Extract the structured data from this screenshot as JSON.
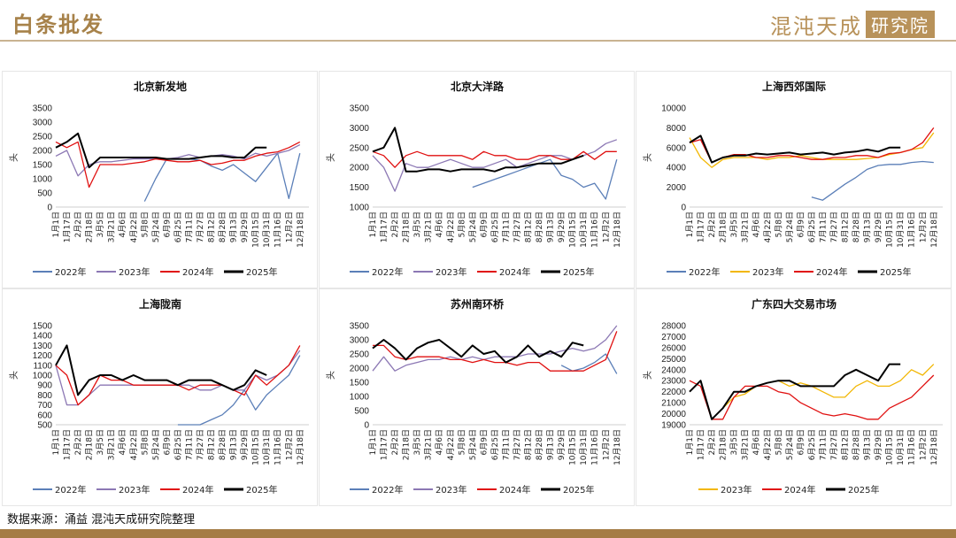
{
  "header": {
    "title": "白条批发",
    "logo_text": "混沌天成",
    "logo_badge": "研究院"
  },
  "footer": {
    "source": "数据来源：涌益 混沌天成研究院整理"
  },
  "colors": {
    "2022": "#5b7fb8",
    "2023_purple": "#8c78b4",
    "2023_yellow": "#f2b705",
    "2024": "#e01010",
    "2025": "#000000",
    "accent": "#a57c45"
  },
  "chart_data": [
    {
      "type": "line",
      "title": "北京新发地",
      "ylabel": "头",
      "ylim": [
        0,
        3500
      ],
      "yticks": [
        0,
        500,
        1000,
        1500,
        2000,
        2500,
        3000,
        3500
      ],
      "x": [
        "1月1日",
        "1月17日",
        "2月2日",
        "2月18日",
        "3月5日",
        "3月21日",
        "4月6日",
        "4月22日",
        "5月8日",
        "5月24日",
        "6月9日",
        "6月25日",
        "7月11日",
        "7月27日",
        "8月12日",
        "8月28日",
        "9月13日",
        "9月29日",
        "10月15日",
        "10月31日",
        "11月16日",
        "12月2日",
        "12月18日"
      ],
      "series": [
        {
          "name": "2022年",
          "color": "#5b7fb8",
          "values": [
            null,
            null,
            null,
            null,
            null,
            null,
            null,
            null,
            200,
            1000,
            1700,
            1700,
            1700,
            1650,
            1450,
            1300,
            1500,
            1200,
            900,
            1400,
            1900,
            300,
            1900
          ]
        },
        {
          "name": "2023年",
          "color": "#8c78b4",
          "values": [
            1800,
            2000,
            1100,
            1500,
            1600,
            1600,
            1650,
            1700,
            1700,
            1700,
            1700,
            1750,
            1850,
            1750,
            1800,
            1850,
            1800,
            1700,
            1900,
            1800,
            1900,
            2000,
            2200
          ]
        },
        {
          "name": "2024年",
          "color": "#e01010",
          "values": [
            2300,
            2100,
            2300,
            700,
            1500,
            1500,
            1500,
            1550,
            1600,
            1700,
            1650,
            1600,
            1600,
            1650,
            1500,
            1550,
            1650,
            1650,
            1800,
            1900,
            1950,
            2100,
            2300
          ]
        },
        {
          "name": "2025年",
          "color": "#000000",
          "values": [
            2100,
            2300,
            2600,
            1400,
            1750,
            1750,
            1750,
            1750,
            1750,
            1750,
            1700,
            1700,
            1700,
            1750,
            1800,
            1800,
            1750,
            1750,
            2100,
            2100,
            null,
            null,
            null
          ]
        }
      ]
    },
    {
      "type": "line",
      "title": "北京大洋路",
      "ylabel": "头",
      "ylim": [
        1000,
        3500
      ],
      "yticks": [
        1000,
        1500,
        2000,
        2500,
        3000,
        3500
      ],
      "x": [
        "1月1日",
        "1月17日",
        "2月2日",
        "2月18日",
        "3月5日",
        "3月21日",
        "4月6日",
        "4月22日",
        "5月8日",
        "5月24日",
        "6月9日",
        "6月25日",
        "7月11日",
        "7月27日",
        "8月12日",
        "8月28日",
        "9月13日",
        "9月29日",
        "10月15日",
        "10月31日",
        "11月16日",
        "12月2日",
        "12月18日"
      ],
      "series": [
        {
          "name": "2022年",
          "color": "#5b7fb8",
          "values": [
            null,
            null,
            null,
            null,
            null,
            null,
            null,
            null,
            null,
            1500,
            1600,
            1700,
            1800,
            1900,
            2000,
            2100,
            2200,
            1800,
            1700,
            1500,
            1600,
            1200,
            2200
          ]
        },
        {
          "name": "2023年",
          "color": "#8c78b4",
          "values": [
            2300,
            2000,
            1400,
            2100,
            2000,
            2000,
            2100,
            2200,
            2100,
            2000,
            2000,
            2100,
            2200,
            2000,
            2100,
            2200,
            2300,
            2300,
            2200,
            2300,
            2400,
            2600,
            2700
          ]
        },
        {
          "name": "2024年",
          "color": "#e01010",
          "values": [
            2400,
            2300,
            2000,
            2300,
            2400,
            2300,
            2300,
            2300,
            2300,
            2200,
            2400,
            2300,
            2300,
            2200,
            2200,
            2300,
            2300,
            2200,
            2200,
            2400,
            2200,
            2400,
            2400
          ]
        },
        {
          "name": "2025年",
          "color": "#000000",
          "values": [
            2400,
            2500,
            3000,
            1900,
            1900,
            1950,
            1950,
            1900,
            1950,
            1950,
            1950,
            1900,
            2000,
            2000,
            2050,
            2100,
            2100,
            2100,
            2200,
            2300,
            null,
            null,
            null
          ]
        }
      ]
    },
    {
      "type": "line",
      "title": "上海西郊国际",
      "ylabel": "头",
      "ylim": [
        0,
        10000
      ],
      "yticks": [
        0,
        2000,
        4000,
        6000,
        8000,
        10000
      ],
      "x": [
        "1月1日",
        "1月17日",
        "2月2日",
        "2月18日",
        "3月5日",
        "3月21日",
        "4月6日",
        "4月22日",
        "5月8日",
        "5月24日",
        "6月9日",
        "6月25日",
        "7月11日",
        "7月27日",
        "8月12日",
        "8月28日",
        "9月13日",
        "9月29日",
        "10月15日",
        "10月31日",
        "11月16日",
        "12月2日",
        "12月18日"
      ],
      "series": [
        {
          "name": "2022年",
          "color": "#5b7fb8",
          "values": [
            null,
            null,
            null,
            null,
            null,
            null,
            null,
            null,
            null,
            null,
            null,
            1000,
            700,
            1500,
            2300,
            3000,
            3800,
            4200,
            4300,
            4300,
            4500,
            4600,
            4500
          ]
        },
        {
          "name": "2023年",
          "color": "#f2b705",
          "values": [
            7000,
            5000,
            4000,
            4800,
            5000,
            5000,
            5000,
            4800,
            5000,
            5000,
            5200,
            5000,
            4800,
            4800,
            4800,
            4800,
            4900,
            5000,
            5300,
            5500,
            5800,
            6000,
            7500
          ]
        },
        {
          "name": "2024年",
          "color": "#e01010",
          "values": [
            6500,
            6800,
            4500,
            5000,
            5300,
            5300,
            5000,
            5000,
            5200,
            5200,
            5000,
            4800,
            4800,
            5000,
            5000,
            5200,
            5200,
            5000,
            5400,
            5500,
            5800,
            6500,
            8000
          ]
        },
        {
          "name": "2025年",
          "color": "#000000",
          "values": [
            6500,
            7200,
            4500,
            5000,
            5200,
            5200,
            5400,
            5300,
            5400,
            5500,
            5300,
            5400,
            5500,
            5300,
            5500,
            5600,
            5800,
            5600,
            6000,
            6000,
            null,
            null,
            null
          ]
        }
      ]
    },
    {
      "type": "line",
      "title": "上海陇南",
      "ylabel": "头",
      "ylim": [
        500,
        1500
      ],
      "yticks": [
        500,
        600,
        700,
        800,
        900,
        1000,
        1100,
        1200,
        1300,
        1400,
        1500
      ],
      "x": [
        "1月1日",
        "1月17日",
        "2月2日",
        "2月18日",
        "3月5日",
        "3月21日",
        "4月6日",
        "4月22日",
        "5月8日",
        "5月24日",
        "6月9日",
        "6月25日",
        "7月11日",
        "7月27日",
        "8月12日",
        "8月28日",
        "9月13日",
        "9月29日",
        "10月15日",
        "10月31日",
        "11月16日",
        "12月2日",
        "12月18日"
      ],
      "series": [
        {
          "name": "2022年",
          "color": "#5b7fb8",
          "values": [
            null,
            null,
            null,
            null,
            null,
            null,
            null,
            null,
            null,
            null,
            null,
            500,
            500,
            500,
            550,
            600,
            700,
            850,
            650,
            800,
            900,
            1000,
            1200
          ]
        },
        {
          "name": "2023年",
          "color": "#8c78b4",
          "values": [
            1100,
            700,
            700,
            800,
            900,
            900,
            900,
            900,
            900,
            900,
            900,
            900,
            900,
            850,
            850,
            900,
            850,
            850,
            1000,
            950,
            1000,
            1100,
            1250
          ]
        },
        {
          "name": "2024年",
          "color": "#e01010",
          "values": [
            1100,
            1000,
            700,
            800,
            1000,
            950,
            950,
            900,
            900,
            900,
            900,
            900,
            850,
            900,
            900,
            900,
            850,
            800,
            1000,
            900,
            1000,
            1100,
            1300
          ]
        },
        {
          "name": "2025年",
          "color": "#000000",
          "values": [
            1100,
            1300,
            800,
            950,
            1000,
            1000,
            950,
            1000,
            950,
            950,
            950,
            900,
            950,
            950,
            950,
            900,
            850,
            900,
            1050,
            1000,
            null,
            null,
            null
          ]
        }
      ]
    },
    {
      "type": "line",
      "title": "苏州南环桥",
      "ylabel": "头",
      "ylim": [
        0,
        3500
      ],
      "yticks": [
        0,
        500,
        1000,
        1500,
        2000,
        2500,
        3000,
        3500
      ],
      "x": [
        "1月1日",
        "1月17日",
        "2月2日",
        "2月18日",
        "3月5日",
        "3月21日",
        "4月6日",
        "4月22日",
        "5月8日",
        "5月24日",
        "6月9日",
        "6月25日",
        "7月11日",
        "7月27日",
        "8月12日",
        "8月28日",
        "9月13日",
        "9月29日",
        "10月15日",
        "10月31日",
        "11月16日",
        "12月2日",
        "12月18日"
      ],
      "series": [
        {
          "name": "2022年",
          "color": "#5b7fb8",
          "values": [
            null,
            null,
            null,
            null,
            null,
            null,
            null,
            null,
            null,
            null,
            null,
            null,
            null,
            null,
            null,
            null,
            null,
            2100,
            1900,
            2000,
            2200,
            2500,
            1800
          ]
        },
        {
          "name": "2023年",
          "color": "#8c78b4",
          "values": [
            1900,
            2400,
            1900,
            2100,
            2200,
            2300,
            2300,
            2400,
            2300,
            2400,
            2300,
            2400,
            2400,
            2400,
            2500,
            2500,
            2500,
            2600,
            2700,
            2600,
            2700,
            3000,
            3500
          ]
        },
        {
          "name": "2024年",
          "color": "#e01010",
          "values": [
            2800,
            2800,
            2400,
            2300,
            2400,
            2400,
            2400,
            2300,
            2300,
            2200,
            2300,
            2200,
            2200,
            2100,
            2200,
            2200,
            1900,
            1900,
            1900,
            1900,
            2100,
            2300,
            3300
          ]
        },
        {
          "name": "2025年",
          "color": "#000000",
          "values": [
            2700,
            3000,
            2700,
            2300,
            2700,
            2900,
            3000,
            2700,
            2400,
            2800,
            2500,
            2600,
            2200,
            2400,
            2800,
            2400,
            2600,
            2400,
            2900,
            2800,
            null,
            null,
            null
          ]
        }
      ]
    },
    {
      "type": "line",
      "title": "广东四大交易市场",
      "ylabel": "头",
      "ylim": [
        19000,
        28000
      ],
      "yticks": [
        19000,
        20000,
        21000,
        22000,
        23000,
        24000,
        25000,
        26000,
        27000,
        28000
      ],
      "x": [
        "1月1日",
        "1月17日",
        "2月2日",
        "2月18日",
        "3月5日",
        "3月21日",
        "4月6日",
        "4月22日",
        "5月8日",
        "5月24日",
        "6月9日",
        "6月25日",
        "7月11日",
        "7月27日",
        "8月12日",
        "8月28日",
        "9月13日",
        "9月29日",
        "10月15日",
        "10月31日",
        "11月16日",
        "12月2日",
        "12月18日"
      ],
      "series": [
        {
          "name": "2023年",
          "color": "#f2b705",
          "values": [
            null,
            null,
            null,
            20500,
            21500,
            21800,
            22500,
            22800,
            23000,
            22500,
            22800,
            22500,
            22000,
            21500,
            21500,
            22500,
            23000,
            22500,
            22500,
            23000,
            24000,
            23500,
            24500
          ]
        },
        {
          "name": "2024年",
          "color": "#e01010",
          "values": [
            23000,
            22500,
            19500,
            19500,
            21500,
            22500,
            22500,
            22500,
            22000,
            21800,
            21000,
            20500,
            20000,
            19800,
            20000,
            19800,
            19500,
            19500,
            20500,
            21000,
            21500,
            22500,
            23500
          ]
        },
        {
          "name": "2025年",
          "color": "#000000",
          "values": [
            22000,
            23000,
            19500,
            20500,
            22000,
            22000,
            22500,
            22800,
            23000,
            23000,
            22500,
            22500,
            22500,
            22500,
            23500,
            24000,
            23500,
            23000,
            24500,
            24500,
            null,
            null,
            null
          ]
        }
      ]
    }
  ]
}
